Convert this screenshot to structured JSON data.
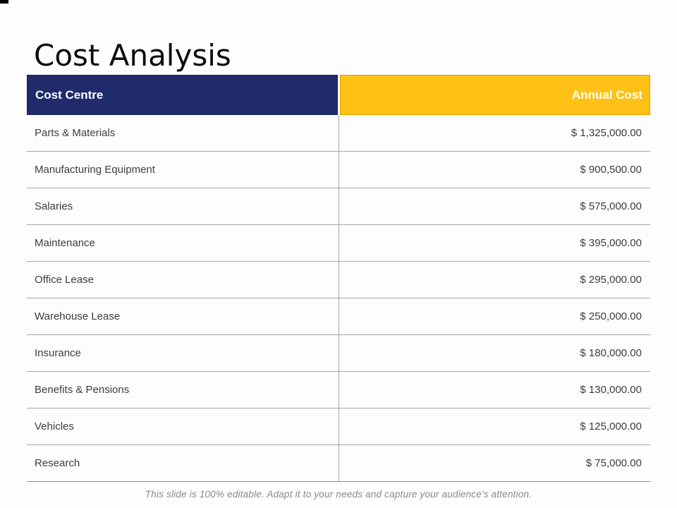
{
  "slide": {
    "title": "Cost Analysis",
    "footer": "This slide is 100% editable. Adapt it to your needs and capture your audience's attention."
  },
  "table": {
    "headers": {
      "cost_centre": "Cost Centre",
      "annual_cost": "Annual Cost"
    },
    "rows": [
      {
        "label": "Parts & Materials",
        "value": "$ 1,325,000.00"
      },
      {
        "label": "Manufacturing Equipment",
        "value": "$ 900,500.00"
      },
      {
        "label": "Salaries",
        "value": "$ 575,000.00"
      },
      {
        "label": "Maintenance",
        "value": "$ 395,000.00"
      },
      {
        "label": "Office Lease",
        "value": "$ 295,000.00"
      },
      {
        "label": "Warehouse Lease",
        "value": "$ 250,000.00"
      },
      {
        "label": "Insurance",
        "value": "$ 180,000.00"
      },
      {
        "label": "Benefits & Pensions",
        "value": "$ 130,000.00"
      },
      {
        "label": "Vehicles",
        "value": "$ 125,000.00"
      },
      {
        "label": "Research",
        "value": "$ 75,000.00"
      }
    ]
  },
  "colors": {
    "header_left_bg": "#1F2B6B",
    "header_right_bg": "#FFC115",
    "header_text": "#FFFFFF",
    "grid_line": "#A6A6A6",
    "body_text": "#3D3D3D",
    "footer_text": "#8A8A8A"
  }
}
